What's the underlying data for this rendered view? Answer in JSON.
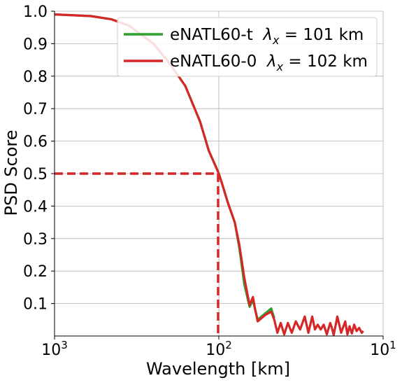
{
  "chart_data": {
    "type": "line",
    "xlabel": "Wavelength [km]",
    "ylabel": "PSD Score",
    "x_scale": "log",
    "x_direction": "reversed",
    "xlim": [
      1000,
      10
    ],
    "ylim": [
      0,
      1.0
    ],
    "grid": true,
    "legend_position": "top-right",
    "yticks": [
      {
        "value": 0.1,
        "label": "0.1"
      },
      {
        "value": 0.2,
        "label": "0.2"
      },
      {
        "value": 0.3,
        "label": "0.3"
      },
      {
        "value": 0.4,
        "label": "0.4"
      },
      {
        "value": 0.5,
        "label": "0.5"
      },
      {
        "value": 0.6,
        "label": "0.6"
      },
      {
        "value": 0.7,
        "label": "0.7"
      },
      {
        "value": 0.8,
        "label": "0.8"
      },
      {
        "value": 0.9,
        "label": "0.9"
      },
      {
        "value": 1.0,
        "label": "1.0"
      }
    ],
    "xticks": [
      {
        "value": 1000,
        "base": "10",
        "exp": "3"
      },
      {
        "value": 100,
        "base": "10",
        "exp": "2"
      },
      {
        "value": 10,
        "base": "10",
        "exp": "1"
      }
    ],
    "threshold": {
      "y": 0.5,
      "x": 101,
      "color": "#d62728"
    },
    "series": [
      {
        "name": "eNATL60-t",
        "legend_prefix": "eNATL60-t",
        "legend_lambda": "λ",
        "legend_sub": "x",
        "legend_suffix": " = 101 km",
        "color": "#2ca02c",
        "x": [
          1000,
          800,
          600,
          450,
          350,
          250,
          200,
          160,
          130,
          115,
          104,
          100,
          95,
          88,
          80,
          75,
          70,
          65,
          62,
          60,
          58,
          55,
          52,
          48,
          46
        ],
        "y": [
          0.99,
          0.988,
          0.985,
          0.975,
          0.955,
          0.9,
          0.84,
          0.77,
          0.66,
          0.57,
          0.52,
          0.5,
          0.465,
          0.41,
          0.35,
          0.27,
          0.16,
          0.09,
          0.11,
          0.08,
          0.05,
          0.06,
          0.07,
          0.085,
          0.055
        ]
      },
      {
        "name": "eNATL60-0",
        "legend_prefix": "eNATL60-0",
        "legend_lambda": "λ",
        "legend_sub": "x",
        "legend_suffix": " = 102 km",
        "color": "#d62728",
        "x": [
          1000,
          800,
          600,
          450,
          350,
          250,
          200,
          160,
          130,
          115,
          104,
          100,
          95,
          88,
          80,
          75,
          70,
          65,
          62,
          60,
          58,
          55,
          52,
          48,
          46,
          44,
          42,
          40,
          38,
          36,
          34,
          32,
          30,
          28.5,
          27,
          26,
          25,
          24,
          23,
          22,
          21,
          20.5,
          20,
          19,
          18,
          17,
          16.5,
          16,
          15.5,
          15,
          14.5,
          14,
          13.5,
          13.2
        ],
        "y": [
          0.99,
          0.988,
          0.985,
          0.975,
          0.955,
          0.9,
          0.84,
          0.77,
          0.66,
          0.57,
          0.52,
          0.5,
          0.465,
          0.41,
          0.35,
          0.28,
          0.18,
          0.095,
          0.12,
          0.08,
          0.045,
          0.055,
          0.065,
          0.075,
          0.05,
          0.01,
          0.04,
          0.005,
          0.04,
          0.01,
          0.045,
          0.02,
          0.06,
          0.01,
          0.06,
          0.02,
          0.035,
          0.02,
          0.035,
          0.005,
          0.04,
          0.025,
          0.003,
          0.06,
          0.01,
          0.045,
          0.005,
          0.03,
          0.008,
          0.035,
          0.015,
          0.025,
          0.01,
          0.015
        ]
      }
    ]
  }
}
